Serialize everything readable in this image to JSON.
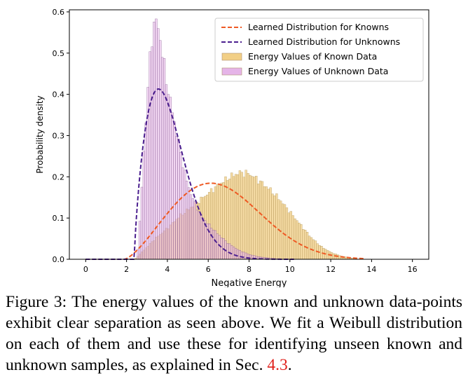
{
  "chart_data": {
    "type": "histogram",
    "xlabel": "Negative Energy",
    "ylabel": "Probability density",
    "xlim": [
      -0.8,
      16.8
    ],
    "ylim": [
      0,
      0.605
    ],
    "xticks": [
      0,
      2,
      4,
      6,
      8,
      10,
      12,
      14,
      16
    ],
    "yticks": [
      0.0,
      0.1,
      0.2,
      0.3,
      0.4,
      0.5,
      0.6
    ],
    "ytick_labels": [
      "0.0",
      "0.1",
      "0.2",
      "0.3",
      "0.4",
      "0.5",
      "0.6"
    ],
    "legend_position": "upper-right",
    "legend": [
      {
        "label": "Learned Distribution for Knowns",
        "kind": "line",
        "color": "#ee5a24"
      },
      {
        "label": "Learned Distribution for Unknowns",
        "kind": "line",
        "color": "#4b1f8f"
      },
      {
        "label": "Energy Values of Known Data",
        "kind": "patch",
        "color": "#f2cf86"
      },
      {
        "label": "Energy Values of Unknown Data",
        "kind": "patch",
        "color": "#e5b4e8"
      }
    ],
    "curves": [
      {
        "name": "Learned Distribution for Knowns",
        "dist": "weibull",
        "shape": 2.4,
        "scale": 5.3,
        "loc": 1.9,
        "x_range": [
          0,
          13.6
        ],
        "color": "#ee5a24",
        "style": "dashed"
      },
      {
        "name": "Learned Distribution for Unknowns",
        "dist": "weibull",
        "shape": 1.75,
        "scale": 1.92,
        "loc": 2.38,
        "x_range": [
          0,
          10.2
        ],
        "color": "#4b1f8f",
        "style": "dashed"
      }
    ],
    "histograms": [
      {
        "name": "Energy Values of Known Data",
        "bin_width": 0.1,
        "x_range": [
          2.4,
          13.4
        ],
        "shape": "smooth peak near x=7.5 (density ~0.21), right tail to ~13",
        "envelope": [
          [
            2.4,
            0.0
          ],
          [
            2.8,
            0.02
          ],
          [
            3.4,
            0.05
          ],
          [
            4.0,
            0.075
          ],
          [
            4.5,
            0.1
          ],
          [
            5.0,
            0.12
          ],
          [
            5.5,
            0.14
          ],
          [
            6.0,
            0.16
          ],
          [
            6.5,
            0.18
          ],
          [
            7.0,
            0.198
          ],
          [
            7.5,
            0.21
          ],
          [
            8.0,
            0.208
          ],
          [
            8.5,
            0.19
          ],
          [
            9.0,
            0.17
          ],
          [
            9.5,
            0.145
          ],
          [
            10.0,
            0.115
          ],
          [
            10.5,
            0.085
          ],
          [
            11.0,
            0.055
          ],
          [
            11.5,
            0.032
          ],
          [
            12.0,
            0.017
          ],
          [
            12.5,
            0.008
          ],
          [
            13.0,
            0.003
          ],
          [
            13.4,
            0.0
          ]
        ],
        "color": "#f2cf86"
      },
      {
        "name": "Energy Values of Unknown Data",
        "bin_width": 0.1,
        "x_range": [
          2.5,
          10.0
        ],
        "shape": "sharp peak near x=3.4 (density ~0.58), right tail to ~9",
        "envelope": [
          [
            2.5,
            0.0
          ],
          [
            2.6,
            0.05
          ],
          [
            2.7,
            0.13
          ],
          [
            2.8,
            0.22
          ],
          [
            2.9,
            0.3
          ],
          [
            3.0,
            0.38
          ],
          [
            3.1,
            0.45
          ],
          [
            3.2,
            0.52
          ],
          [
            3.3,
            0.56
          ],
          [
            3.4,
            0.58
          ],
          [
            3.5,
            0.57
          ],
          [
            3.6,
            0.55
          ],
          [
            3.7,
            0.52
          ],
          [
            3.8,
            0.48
          ],
          [
            4.0,
            0.42
          ],
          [
            4.2,
            0.37
          ],
          [
            4.4,
            0.32
          ],
          [
            4.6,
            0.27
          ],
          [
            4.8,
            0.22
          ],
          [
            5.0,
            0.18
          ],
          [
            5.3,
            0.14
          ],
          [
            5.6,
            0.11
          ],
          [
            6.0,
            0.085
          ],
          [
            6.5,
            0.06
          ],
          [
            7.0,
            0.038
          ],
          [
            7.5,
            0.022
          ],
          [
            8.0,
            0.012
          ],
          [
            8.5,
            0.006
          ],
          [
            9.0,
            0.003
          ],
          [
            9.6,
            0.0
          ]
        ],
        "color": "#e5b4e8"
      }
    ]
  },
  "caption": {
    "prefix": "Figure 3:  The energy values of the known and unknown data-points exhibit clear separation as seen above.  We fit a Weibull distribution on each of them and use these for identifying unseen known and unknown samples, as explained in Sec. ",
    "ref": "4.3",
    "suffix": "."
  }
}
